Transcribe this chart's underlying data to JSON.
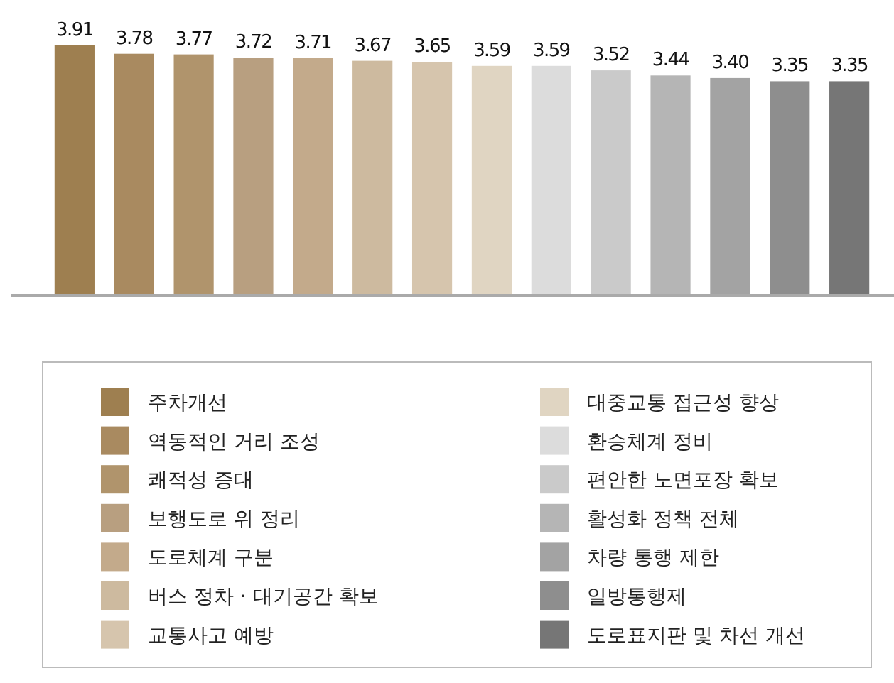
{
  "chart_data": {
    "type": "bar",
    "stacked": true,
    "categories": [
      null,
      null,
      null,
      null,
      null,
      null,
      null,
      null,
      null,
      null,
      null,
      null,
      null,
      null
    ],
    "series": [
      {
        "name": "주차개선",
        "color": "#9e7f50",
        "values": [
          3.91,
          null,
          null,
          null,
          null,
          null,
          null,
          null,
          null,
          null,
          null,
          null,
          null,
          null
        ],
        "value_labels": [
          "3.91",
          null,
          null,
          null,
          null,
          null,
          null,
          null,
          null,
          null,
          null,
          null,
          null,
          null
        ]
      },
      {
        "name": "역동적인 거리 조성",
        "color": "#a98a60",
        "values": [
          null,
          3.78,
          null,
          null,
          null,
          null,
          null,
          null,
          null,
          null,
          null,
          null,
          null,
          null
        ],
        "value_labels": [
          null,
          "3.78",
          null,
          null,
          null,
          null,
          null,
          null,
          null,
          null,
          null,
          null,
          null,
          null
        ]
      },
      {
        "name": "쾌적성 증대",
        "color": "#b0946c",
        "values": [
          null,
          null,
          3.77,
          null,
          null,
          null,
          null,
          null,
          null,
          null,
          null,
          null,
          null,
          null
        ],
        "value_labels": [
          null,
          null,
          "3.77",
          null,
          null,
          null,
          null,
          null,
          null,
          null,
          null,
          null,
          null,
          null
        ]
      },
      {
        "name": "보행도로 위 정리",
        "color": "#b89f80",
        "values": [
          null,
          null,
          null,
          3.72,
          null,
          null,
          null,
          null,
          null,
          null,
          null,
          null,
          null,
          null
        ],
        "value_labels": [
          null,
          null,
          null,
          "3.72",
          null,
          null,
          null,
          null,
          null,
          null,
          null,
          null,
          null,
          null
        ]
      },
      {
        "name": "도로체계 구분",
        "color": "#c3aa8b",
        "values": [
          null,
          null,
          null,
          null,
          3.71,
          null,
          null,
          null,
          null,
          null,
          null,
          null,
          null,
          null
        ],
        "value_labels": [
          null,
          null,
          null,
          null,
          "3.71",
          null,
          null,
          null,
          null,
          null,
          null,
          null,
          null,
          null
        ]
      },
      {
        "name": "버스 정차 · 대기공간 확보",
        "color": "#cdba9f",
        "values": [
          null,
          null,
          null,
          null,
          null,
          3.67,
          null,
          null,
          null,
          null,
          null,
          null,
          null,
          null
        ],
        "value_labels": [
          null,
          null,
          null,
          null,
          null,
          "3.67",
          null,
          null,
          null,
          null,
          null,
          null,
          null,
          null
        ]
      },
      {
        "name": "교통사고 예방",
        "color": "#d6c5ad",
        "values": [
          null,
          null,
          null,
          null,
          null,
          null,
          3.65,
          null,
          null,
          null,
          null,
          null,
          null,
          null
        ],
        "value_labels": [
          null,
          null,
          null,
          null,
          null,
          null,
          "3.65",
          null,
          null,
          null,
          null,
          null,
          null,
          null
        ]
      },
      {
        "name": "대중교통 접근성 향상",
        "color": "#e0d5c2",
        "values": [
          null,
          null,
          null,
          null,
          null,
          null,
          null,
          3.59,
          null,
          null,
          null,
          null,
          null,
          null
        ],
        "value_labels": [
          null,
          null,
          null,
          null,
          null,
          null,
          null,
          "3.59",
          null,
          null,
          null,
          null,
          null,
          null
        ]
      },
      {
        "name": "환승체계 정비",
        "color": "#dcdcdc",
        "values": [
          null,
          null,
          null,
          null,
          null,
          null,
          null,
          null,
          3.59,
          null,
          null,
          null,
          null,
          null
        ],
        "value_labels": [
          null,
          null,
          null,
          null,
          null,
          null,
          null,
          null,
          "3.59",
          null,
          null,
          null,
          null,
          null
        ]
      },
      {
        "name": "편안한 노면포장 확보",
        "color": "#cacaca",
        "values": [
          null,
          null,
          null,
          null,
          null,
          null,
          null,
          null,
          null,
          3.52,
          null,
          null,
          null,
          null
        ],
        "value_labels": [
          null,
          null,
          null,
          null,
          null,
          null,
          null,
          null,
          null,
          "3.52",
          null,
          null,
          null,
          null
        ]
      },
      {
        "name": "활성화 정책 전체",
        "color": "#b5b5b5",
        "values": [
          null,
          null,
          null,
          null,
          null,
          null,
          null,
          null,
          null,
          null,
          3.44,
          null,
          null,
          null
        ],
        "value_labels": [
          null,
          null,
          null,
          null,
          null,
          null,
          null,
          null,
          null,
          null,
          "3.44",
          null,
          null,
          null
        ]
      },
      {
        "name": "차량 통행 제한",
        "color": "#a3a3a3",
        "values": [
          null,
          null,
          null,
          null,
          null,
          null,
          null,
          null,
          null,
          null,
          null,
          3.4,
          null,
          null
        ],
        "value_labels": [
          null,
          null,
          null,
          null,
          null,
          null,
          null,
          null,
          null,
          null,
          null,
          "3.40",
          null,
          null
        ]
      },
      {
        "name": "일방통행제",
        "color": "#8e8e8e",
        "values": [
          null,
          null,
          null,
          null,
          null,
          null,
          null,
          null,
          null,
          null,
          null,
          null,
          3.35,
          null
        ],
        "value_labels": [
          null,
          null,
          null,
          null,
          null,
          null,
          null,
          null,
          null,
          null,
          null,
          null,
          "3.35",
          null
        ]
      },
      {
        "name": "도로표지판 및 차선 개선",
        "color": "#767676",
        "values": [
          null,
          null,
          null,
          null,
          null,
          null,
          null,
          null,
          null,
          null,
          null,
          null,
          null,
          3.35
        ],
        "value_labels": [
          null,
          null,
          null,
          null,
          null,
          null,
          null,
          null,
          null,
          null,
          null,
          null,
          null,
          "3.35"
        ]
      }
    ],
    "legend": "bottom"
  }
}
